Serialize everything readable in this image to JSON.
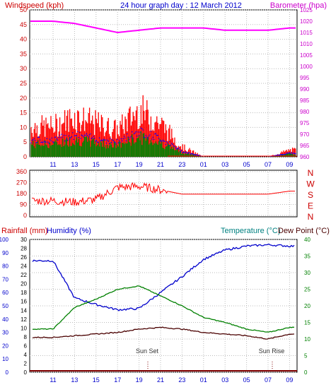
{
  "header": {
    "windspeed_label": "Windspeed (kph)",
    "title": "24 hour graph day : 12 March 2012",
    "barometer_label": "Barometer (hpa)"
  },
  "lower_header": {
    "rainfall_label": "Rainfall (mm)",
    "humidity_label": "Humidity (%)",
    "temperature_label": "Temperature (°C)",
    "dewpoint_label": "Dew Point (°C)"
  },
  "annotations": {
    "sunset": "Sun Set",
    "sunrise": "Sun Rise"
  },
  "x_ticks": [
    "11",
    "13",
    "15",
    "17",
    "19",
    "21",
    "23",
    "01",
    "03",
    "05",
    "07",
    "09"
  ],
  "compass_labels": [
    "N",
    "W",
    "S",
    "E",
    "N"
  ],
  "colors": {
    "wind_red": "#ff0000",
    "gust_blue": "#0000ff",
    "avg_green": "#008000",
    "barometer": "#ff00ff",
    "header_red": "#cc0000",
    "title_blue": "#0000cc",
    "axis_teal": "#008080",
    "temp_green": "#008000",
    "humidity_blue": "#0000cc",
    "dew_maroon": "#4a0000",
    "rain_navy": "#000080"
  },
  "chart_data": [
    {
      "type": "line",
      "name": "wind_and_barometer",
      "x": [
        "11",
        "13",
        "15",
        "17",
        "19",
        "21",
        "23",
        "01",
        "03",
        "05",
        "07",
        "09"
      ],
      "y_left_ticks": [
        "0",
        "5",
        "10",
        "15",
        "20",
        "25",
        "30",
        "35",
        "40",
        "45",
        "50"
      ],
      "y_right_ticks": [
        "960",
        "965",
        "970",
        "975",
        "980",
        "985",
        "990",
        "995",
        "1000",
        "1005",
        "1010",
        "1015",
        "1020",
        "1025"
      ],
      "ylim_left": [
        0,
        50
      ],
      "ylim_right": [
        960,
        1025
      ],
      "series": [
        {
          "name": "Windspeed (kph)",
          "values": [
            9,
            12,
            10,
            8,
            14,
            10,
            3,
            0,
            0,
            0,
            0,
            2
          ]
        },
        {
          "name": "Barometer (hpa)",
          "values": [
            1020,
            1019,
            1017,
            1015,
            1016,
            1017,
            1017,
            1017,
            1016,
            1016,
            1016,
            1017
          ]
        }
      ]
    },
    {
      "type": "line",
      "name": "wind_direction",
      "x": [
        "11",
        "13",
        "15",
        "17",
        "19",
        "21",
        "23",
        "01",
        "03",
        "05",
        "07",
        "09"
      ],
      "y_ticks": [
        "0",
        "90",
        "180",
        "270",
        "360"
      ],
      "ylim": [
        0,
        360
      ],
      "values": [
        120,
        110,
        130,
        230,
        240,
        210,
        175,
        175,
        175,
        175,
        175,
        200
      ]
    },
    {
      "type": "line",
      "name": "temperature_humidity",
      "x": [
        "11",
        "13",
        "15",
        "17",
        "19",
        "21",
        "23",
        "01",
        "03",
        "05",
        "07",
        "09"
      ],
      "y_left_outer_ticks": [
        "0",
        "10",
        "20",
        "30",
        "40",
        "50",
        "60",
        "70",
        "80",
        "90",
        "100"
      ],
      "y_left_inner_ticks": [
        "0",
        "2",
        "4",
        "6",
        "8",
        "10",
        "12",
        "14",
        "16",
        "18",
        "20",
        "22",
        "24",
        "26",
        "28",
        "30"
      ],
      "y_right_ticks": [
        "0",
        "5",
        "10",
        "15",
        "20",
        "25",
        "30",
        "35",
        "40"
      ],
      "ylim_humidity": [
        0,
        100
      ],
      "ylim_temperature": [
        0,
        40
      ],
      "series": [
        {
          "name": "Temperature (°C)",
          "values": [
            13,
            19.5,
            22,
            25,
            26,
            23,
            20,
            16.5,
            15,
            13,
            12,
            13.5
          ]
        },
        {
          "name": "Humidity (%)",
          "values": [
            84,
            56,
            51,
            47,
            48,
            60,
            72,
            85,
            92,
            95,
            96,
            95
          ]
        },
        {
          "name": "Dew Point (°C)",
          "values": [
            10.5,
            11,
            11.5,
            12,
            13,
            13.5,
            13,
            12,
            11.5,
            11,
            10,
            11.5
          ]
        },
        {
          "name": "Rainfall (mm)",
          "values": [
            0,
            0,
            0,
            0,
            0,
            0,
            0,
            0,
            0,
            0,
            0,
            0
          ]
        }
      ]
    }
  ]
}
